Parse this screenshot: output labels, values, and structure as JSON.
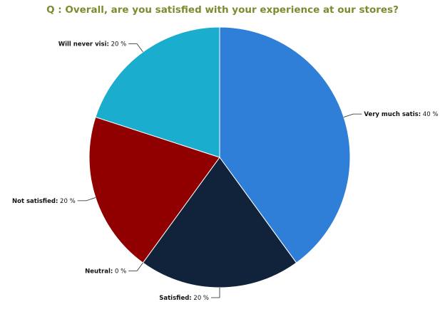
{
  "chart_data": {
    "type": "pie",
    "title": "Q : Overall, are you satisfied with your experience at our stores?",
    "slices": [
      {
        "label": "Very much satis",
        "value": 40,
        "display": "40 %",
        "color": "#2f7ed8"
      },
      {
        "label": "Satisfied",
        "value": 20,
        "display": "20 %",
        "color": "#10233a"
      },
      {
        "label": "Neutral",
        "value": 0,
        "display": "0 %",
        "color": "#8bbc21"
      },
      {
        "label": "Not satisfied",
        "value": 20,
        "display": "20 %",
        "color": "#910000"
      },
      {
        "label": "Will never visi",
        "value": 20,
        "display": "20 %",
        "color": "#1aadce"
      }
    ],
    "start_angle_deg": 0,
    "direction": "clockwise"
  }
}
